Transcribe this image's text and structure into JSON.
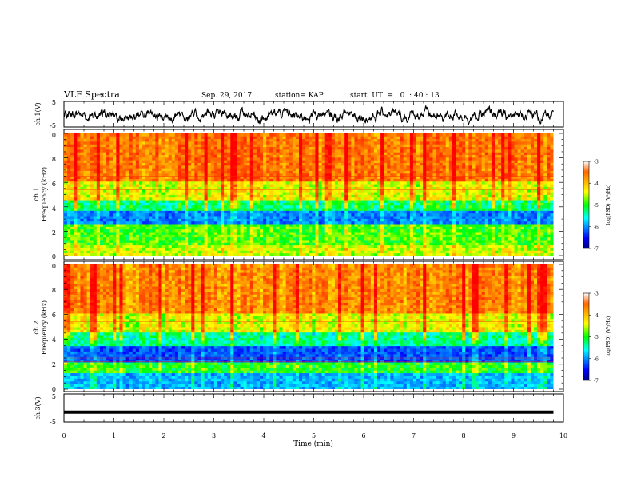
{
  "header": {
    "title": "VLF Spectra",
    "date": "Sep. 29, 2017",
    "station": "station= KAP",
    "start_time": "start  UT  =   0  : 40 : 13"
  },
  "colors": {
    "low": "#000099",
    "high": "#ff0000",
    "trace": "#000000"
  },
  "chart_data": [
    {
      "type": "line",
      "name": "ch1-waveform",
      "ylabel": "ch.1(V)",
      "ylim": [
        -5,
        5
      ],
      "yticks": [
        "5",
        "-5"
      ],
      "xlim": [
        0,
        10
      ],
      "note_values": "noisy waveform between approximately -4 and 3 V"
    },
    {
      "type": "heatmap",
      "name": "ch1-spectrogram",
      "ylabel_line1": "ch.1",
      "ylabel_line2": "Frequency (kHz)",
      "ylim": [
        0,
        10
      ],
      "yticks": [
        "0",
        "2",
        "4",
        "6",
        "8",
        "10"
      ],
      "xlim": [
        0,
        10
      ],
      "bands": [
        {
          "from": 0,
          "to": 0.8,
          "level": -4.6
        },
        {
          "from": 0.8,
          "to": 2.6,
          "level": -4.9
        },
        {
          "from": 2.6,
          "to": 3.6,
          "level": -6.0
        },
        {
          "from": 3.6,
          "to": 4.6,
          "level": -5.2
        },
        {
          "from": 4.6,
          "to": 6.0,
          "level": -4.5
        },
        {
          "from": 6.0,
          "to": 10.0,
          "level": -3.8
        }
      ],
      "colorbar": {
        "label": "log(PSD) (V²/Hz)",
        "range": [
          -7,
          -3
        ],
        "ticks": [
          "-3",
          "-4",
          "-5",
          "-6",
          "-7"
        ]
      }
    },
    {
      "type": "heatmap",
      "name": "ch2-spectrogram",
      "ylabel_line1": "ch.2",
      "ylabel_line2": "Frequency (kHz)",
      "ylim": [
        0,
        10
      ],
      "yticks": [
        "0",
        "2",
        "4",
        "6",
        "8",
        "10"
      ],
      "xlim": [
        0,
        10
      ],
      "bands": [
        {
          "from": 0,
          "to": 1.2,
          "level": -5.8
        },
        {
          "from": 1.2,
          "to": 2.2,
          "level": -5.0
        },
        {
          "from": 2.2,
          "to": 3.4,
          "level": -6.2
        },
        {
          "from": 3.4,
          "to": 4.5,
          "level": -5.3
        },
        {
          "from": 4.5,
          "to": 6.0,
          "level": -4.5
        },
        {
          "from": 6.0,
          "to": 10.0,
          "level": -3.9
        }
      ],
      "colorbar": {
        "label": "log(PSD) (V²/Hz)",
        "range": [
          -7,
          -3
        ],
        "ticks": [
          "-3",
          "-4",
          "-5",
          "-6",
          "-7"
        ]
      }
    },
    {
      "type": "line",
      "name": "ch3-waveform",
      "ylabel": "ch.3(V)",
      "ylim": [
        -5,
        5
      ],
      "yticks": [
        "5",
        "-5"
      ],
      "xlim": [
        0,
        10
      ],
      "value": -1.5
    }
  ],
  "xaxis": {
    "label": "Time (min)",
    "ticks": [
      "0",
      "1",
      "2",
      "3",
      "4",
      "5",
      "6",
      "7",
      "8",
      "9",
      "10"
    ],
    "data_end": 9.8
  }
}
